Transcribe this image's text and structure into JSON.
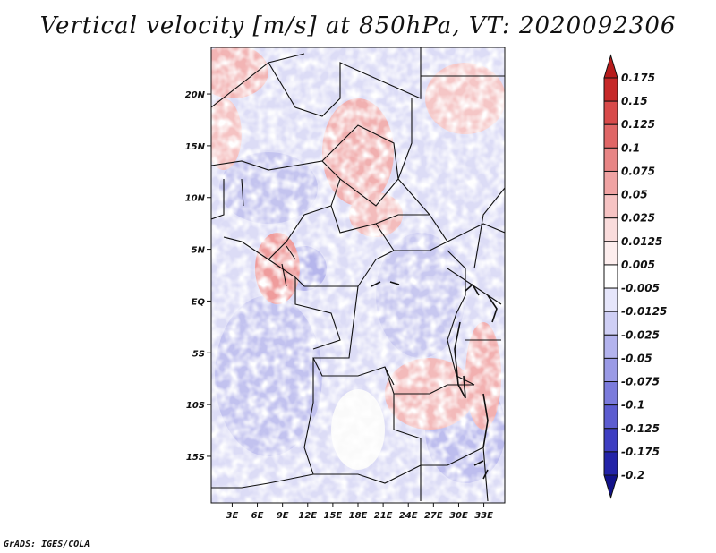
{
  "title": "Vertical velocity [m/s] at 850hPa, VT: 2020092306",
  "footer": "GrADS: IGES/COLA",
  "map": {
    "lat_labels": [
      "20N",
      "15N",
      "10N",
      "5N",
      "EQ",
      "5S",
      "10S",
      "15S"
    ],
    "lat_values": [
      20,
      15,
      10,
      5,
      0,
      -5,
      -10,
      -15
    ],
    "lon_labels": [
      "3E",
      "6E",
      "9E",
      "12E",
      "15E",
      "18E",
      "21E",
      "24E",
      "27E",
      "30E",
      "33E"
    ],
    "lon_values": [
      3,
      6,
      9,
      12,
      15,
      18,
      21,
      24,
      27,
      30,
      33
    ],
    "lat_range": [
      -19.5,
      24.5
    ],
    "lon_range": [
      0.5,
      35.5
    ]
  },
  "colorbar": {
    "labels": [
      "0.175",
      "0.15",
      "0.125",
      "0.1",
      "0.075",
      "0.05",
      "0.025",
      "0.0125",
      "0.005",
      "-0.005",
      "-0.0125",
      "-0.025",
      "-0.05",
      "-0.075",
      "-0.1",
      "-0.125",
      "-0.175",
      "-0.2"
    ],
    "colors": [
      "#b71c1c",
      "#c62828",
      "#d84a4a",
      "#e06666",
      "#e88585",
      "#f0a3a3",
      "#f6c3c3",
      "#fadcdc",
      "#fdeeee",
      "#ffffff",
      "#e6e6fb",
      "#cfcff5",
      "#b3b3ee",
      "#9a9ae6",
      "#7b7bdc",
      "#5c5cd0",
      "#3e3ec2",
      "#2323a8",
      "#12128a"
    ]
  }
}
